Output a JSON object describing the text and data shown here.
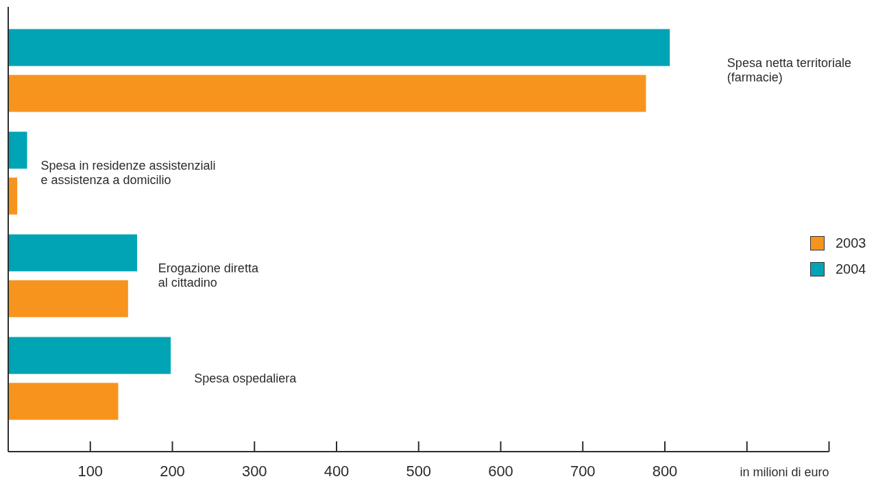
{
  "chart_data": {
    "type": "bar",
    "orientation": "horizontal",
    "categories": [
      "Spesa netta territoriale\n(farmacie)",
      "Spesa in residenze assistenziali\ne assistenza a domicilio",
      "Erogazione diretta\nal cittadino",
      "Spesa ospedaliera"
    ],
    "series": [
      {
        "name": "2003",
        "color": "#f7941e",
        "values": [
          777,
          11,
          146,
          134
        ]
      },
      {
        "name": "2004",
        "color": "#00a4b4",
        "values": [
          806,
          23,
          157,
          198
        ]
      }
    ],
    "xlim": [
      0,
      1000
    ],
    "xticks": [
      100,
      200,
      300,
      400,
      500,
      600,
      700,
      800,
      {
        "value": 900,
        "label": null
      },
      {
        "value": 1000,
        "label": null
      }
    ],
    "xlabel": "in milioni di euro",
    "legend": "right"
  }
}
